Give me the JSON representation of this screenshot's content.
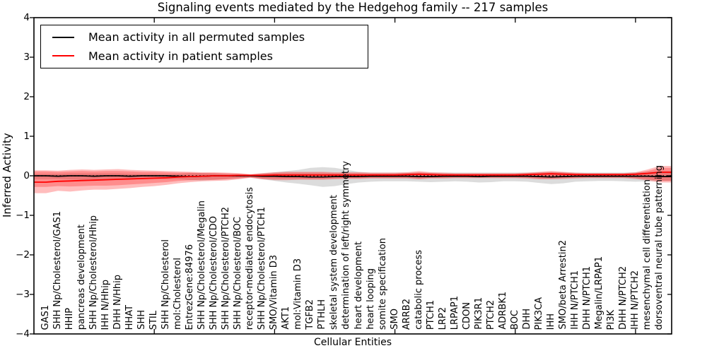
{
  "title": "Signaling events mediated by the Hedgehog family -- 217 samples",
  "legend": {
    "items": [
      {
        "label": "Mean activity in all permuted samples",
        "color": "#000000"
      },
      {
        "label": "Mean activity in patient samples",
        "color": "#ff0000"
      }
    ],
    "position": "upper left"
  },
  "chart_data": {
    "type": "line",
    "title": "Signaling events mediated by the Hedgehog family -- 217 samples",
    "xlabel": "Cellular Entities",
    "ylabel": "Inferred Activity",
    "ylim": [
      -4,
      4
    ],
    "yticks": [
      4,
      3,
      2,
      1,
      0,
      -1,
      -2,
      -3,
      -4
    ],
    "ytick_labels": [
      "4",
      "3",
      "2",
      "1",
      "0",
      "−1",
      "−2",
      "−3",
      "−4"
    ],
    "xlim": [
      0,
      53
    ],
    "xticks_major": [
      10,
      20,
      30,
      40,
      50
    ],
    "grid": false,
    "zero_line": true,
    "legend_position": "upper left",
    "categories": [
      "GAS1",
      "SHH Np/Cholesterol/GAS1",
      "HHIP",
      "pancreas development",
      "SHH Np/Cholesterol/Hhip",
      "IHH N/Hhip",
      "DHH N/Hhip",
      "HHAT",
      "SHH",
      "STIL",
      "SHH Np/Cholesterol",
      "mol:Cholesterol",
      "EntrezGene:84976",
      "SHH Np/Cholesterol/Megalin",
      "SHH Np/Cholesterol/CDO",
      "SHH Np/Cholesterol/PTCH2",
      "SHH Np/Cholesterol/BOC",
      "receptor-mediated endocytosis",
      "SHH Np/Cholesterol/PTCH1",
      "SMO/Vitamin D3",
      "AKT1",
      "mol:Vitamin D3",
      "TGFB2",
      "PTHLH",
      "skeletal system development",
      "determination of left/right symmetry",
      "heart development",
      "heart looping",
      "somite specification",
      "SMO",
      "ARRB2",
      "catabolic process",
      "PTCH1",
      "LRP2",
      "LRPAP1",
      "CDON",
      "PIK3R1",
      "PTCH2",
      "ADRBK1",
      "BOC",
      "DHH",
      "PIK3CA",
      "IHH",
      "SMO/beta Arrestin2",
      "IHH N/PTCH1",
      "DHH N/PTCH1",
      "Megalin/LRPAP1",
      "PI3K",
      "DHH N/PTCH2",
      "IHH N/PTCH2",
      "mesenchymal cell differentiation",
      "dorsoventral neural tube patterning"
    ],
    "series": [
      {
        "name": "Mean activity in all permuted samples",
        "color": "#000000",
        "values": [
          0,
          -0.01,
          0,
          0,
          -0.01,
          0,
          0,
          -0.01,
          0,
          0,
          0,
          -0.01,
          -0.02,
          -0.01,
          0,
          0,
          0,
          0,
          -0.01,
          -0.01,
          -0.02,
          -0.02,
          -0.03,
          -0.03,
          -0.02,
          -0.02,
          -0.02,
          -0.01,
          -0.01,
          -0.01,
          -0.01,
          -0.02,
          -0.02,
          -0.01,
          -0.01,
          -0.01,
          -0.02,
          -0.01,
          -0.01,
          -0.01,
          -0.01,
          -0.02,
          -0.03,
          -0.02,
          -0.01,
          -0.01,
          -0.01,
          -0.01,
          -0.01,
          -0.01,
          -0.01,
          -0.02
        ]
      },
      {
        "name": "Mean activity in patient samples",
        "color": "#ff0000",
        "values": [
          -0.16,
          -0.14,
          -0.13,
          -0.12,
          -0.11,
          -0.1,
          -0.09,
          -0.08,
          -0.07,
          -0.06,
          -0.05,
          -0.03,
          -0.02,
          -0.01,
          0,
          0,
          0.01,
          0.01,
          0.01,
          0.02,
          0.02,
          0.02,
          0.02,
          0.02,
          0.02,
          0.02,
          0.02,
          0.02,
          0.02,
          0.02,
          0.03,
          0.04,
          0.03,
          0.02,
          0.02,
          0.02,
          0.02,
          0.02,
          0.02,
          0.02,
          0.03,
          0.04,
          0.05,
          0.04,
          0.03,
          0.03,
          0.03,
          0.03,
          0.03,
          0.04,
          0.06,
          0.09
        ]
      }
    ],
    "bands": [
      {
        "name": "permuted-std",
        "color": "#8a8a8a",
        "opacity": 0.3,
        "upper": [
          0.05,
          0.05,
          0.06,
          0.06,
          0.06,
          0.06,
          0.06,
          0.05,
          0.05,
          0.05,
          0.04,
          0.05,
          0.07,
          0.07,
          0.06,
          0.05,
          0.04,
          0.03,
          0.06,
          0.09,
          0.12,
          0.15,
          0.2,
          0.22,
          0.2,
          0.15,
          0.1,
          0.08,
          0.08,
          0.08,
          0.08,
          0.08,
          0.08,
          0.08,
          0.08,
          0.08,
          0.08,
          0.08,
          0.08,
          0.08,
          0.08,
          0.09,
          0.1,
          0.09,
          0.08,
          0.08,
          0.08,
          0.08,
          0.08,
          0.09,
          0.1,
          0.12
        ],
        "lower": [
          -0.08,
          -0.08,
          -0.09,
          -0.1,
          -0.1,
          -0.1,
          -0.1,
          -0.09,
          -0.09,
          -0.08,
          -0.08,
          -0.08,
          -0.11,
          -0.12,
          -0.1,
          -0.08,
          -0.06,
          -0.05,
          -0.09,
          -0.13,
          -0.17,
          -0.2,
          -0.24,
          -0.28,
          -0.26,
          -0.21,
          -0.17,
          -0.15,
          -0.14,
          -0.14,
          -0.14,
          -0.15,
          -0.16,
          -0.15,
          -0.14,
          -0.15,
          -0.17,
          -0.16,
          -0.14,
          -0.14,
          -0.15,
          -0.18,
          -0.21,
          -0.19,
          -0.15,
          -0.14,
          -0.13,
          -0.13,
          -0.14,
          -0.15,
          -0.14,
          -0.13
        ]
      },
      {
        "name": "patient-std-outer",
        "color": "#ff0000",
        "opacity": 0.26,
        "upper": [
          0.14,
          0.13,
          0.15,
          0.16,
          0.15,
          0.16,
          0.17,
          0.15,
          0.14,
          0.13,
          0.12,
          0.11,
          0.1,
          0.09,
          0.09,
          0.08,
          0.07,
          0.04,
          0.07,
          0.09,
          0.1,
          0.1,
          0.1,
          0.1,
          0.09,
          0.09,
          0.09,
          0.08,
          0.08,
          0.08,
          0.09,
          0.12,
          0.09,
          0.08,
          0.07,
          0.07,
          0.07,
          0.07,
          0.07,
          0.07,
          0.08,
          0.1,
          0.12,
          0.1,
          0.08,
          0.07,
          0.07,
          0.07,
          0.07,
          0.09,
          0.16,
          0.25
        ],
        "lower": [
          -0.44,
          -0.38,
          -0.4,
          -0.37,
          -0.35,
          -0.35,
          -0.33,
          -0.31,
          -0.28,
          -0.26,
          -0.23,
          -0.19,
          -0.16,
          -0.14,
          -0.13,
          -0.12,
          -0.09,
          -0.05,
          -0.09,
          -0.11,
          -0.11,
          -0.1,
          -0.1,
          -0.1,
          -0.09,
          -0.08,
          -0.08,
          -0.07,
          -0.07,
          -0.07,
          -0.07,
          -0.09,
          -0.07,
          -0.07,
          -0.06,
          -0.06,
          -0.06,
          -0.06,
          -0.06,
          -0.06,
          -0.07,
          -0.09,
          -0.09,
          -0.08,
          -0.07,
          -0.06,
          -0.06,
          -0.06,
          -0.06,
          -0.08,
          -0.12,
          -0.17
        ]
      },
      {
        "name": "patient-std-inner",
        "color": "#ff0000",
        "opacity": 0.26,
        "upper": [
          0.11,
          0.1,
          0.11,
          0.12,
          0.11,
          0.12,
          0.12,
          0.11,
          0.1,
          0.1,
          0.09,
          0.08,
          0.08,
          0.07,
          0.07,
          0.06,
          0.05,
          0.03,
          0.05,
          0.07,
          0.08,
          0.08,
          0.08,
          0.08,
          0.07,
          0.07,
          0.07,
          0.06,
          0.06,
          0.06,
          0.07,
          0.09,
          0.07,
          0.06,
          0.05,
          0.05,
          0.05,
          0.05,
          0.05,
          0.05,
          0.06,
          0.08,
          0.09,
          0.08,
          0.06,
          0.05,
          0.05,
          0.05,
          0.05,
          0.07,
          0.12,
          0.2
        ],
        "lower": [
          -0.28,
          -0.26,
          -0.27,
          -0.26,
          -0.25,
          -0.25,
          -0.24,
          -0.22,
          -0.2,
          -0.18,
          -0.16,
          -0.13,
          -0.11,
          -0.1,
          -0.1,
          -0.09,
          -0.07,
          -0.04,
          -0.07,
          -0.08,
          -0.08,
          -0.08,
          -0.08,
          -0.08,
          -0.07,
          -0.06,
          -0.06,
          -0.05,
          -0.05,
          -0.05,
          -0.05,
          -0.07,
          -0.05,
          -0.05,
          -0.04,
          -0.04,
          -0.04,
          -0.04,
          -0.04,
          -0.04,
          -0.05,
          -0.07,
          -0.07,
          -0.06,
          -0.05,
          -0.04,
          -0.04,
          -0.04,
          -0.04,
          -0.06,
          -0.09,
          -0.13
        ]
      }
    ]
  }
}
